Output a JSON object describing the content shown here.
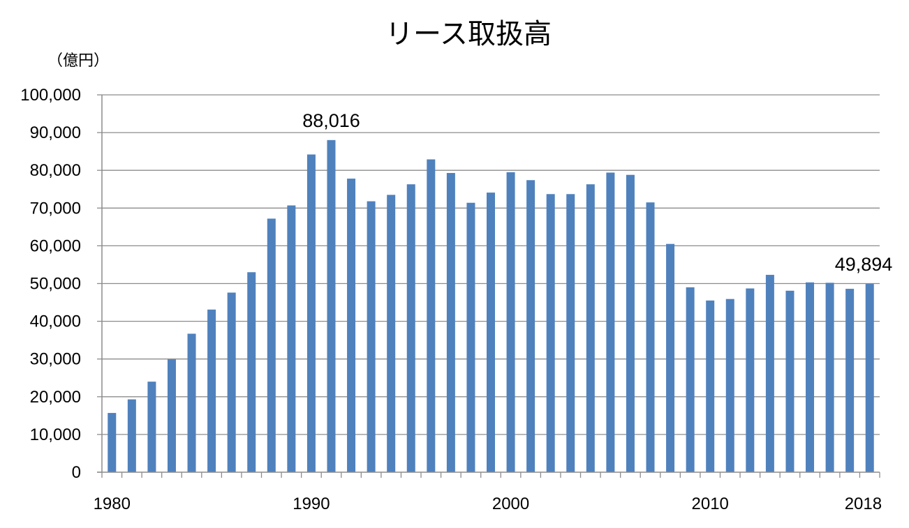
{
  "chart_data": {
    "type": "bar",
    "title": "リース取扱高",
    "ylabel": "（億円）",
    "xlabel": "",
    "ylim": [
      0,
      100000
    ],
    "y_ticks": [
      "0",
      "10,000",
      "20,000",
      "30,000",
      "40,000",
      "50,000",
      "60,000",
      "70,000",
      "80,000",
      "90,000",
      "100,000"
    ],
    "x_tick_labels": [
      "1980",
      "1990",
      "2000",
      "2010",
      "2018"
    ],
    "grid": true,
    "bar_color": "#4F81BD",
    "categories": [
      "1980",
      "1981",
      "1982",
      "1983",
      "1984",
      "1985",
      "1986",
      "1987",
      "1988",
      "1989",
      "1990",
      "1991",
      "1992",
      "1993",
      "1994",
      "1995",
      "1996",
      "1997",
      "1998",
      "1999",
      "2000",
      "2001",
      "2002",
      "2003",
      "2004",
      "2005",
      "2006",
      "2007",
      "2008",
      "2009",
      "2010",
      "2011",
      "2012",
      "2013",
      "2014",
      "2015",
      "2016",
      "2017",
      "2018"
    ],
    "values": [
      15700,
      19300,
      24000,
      29900,
      36700,
      43100,
      47600,
      53000,
      67200,
      70700,
      84200,
      88016,
      77800,
      71800,
      73500,
      76300,
      82900,
      79300,
      71400,
      74100,
      79500,
      77400,
      73700,
      73700,
      76300,
      79400,
      78800,
      71500,
      60500,
      49000,
      45500,
      45900,
      48700,
      52300,
      48100,
      50300,
      50200,
      48600,
      49894
    ],
    "data_labels": [
      {
        "category": "1991",
        "text": "88,016"
      },
      {
        "category": "2018",
        "text": "49,894"
      }
    ]
  }
}
